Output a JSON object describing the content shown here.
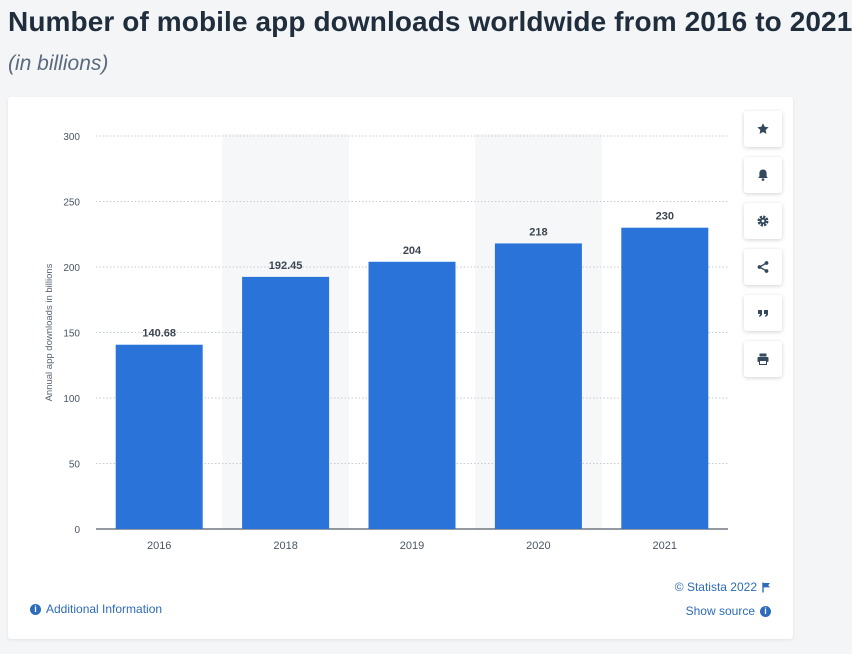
{
  "header": {
    "title": "Number of mobile app downloads worldwide from 2016 to 2021",
    "subtitle": "(in billions)"
  },
  "chart_data": {
    "type": "bar",
    "categories": [
      "2016",
      "2018",
      "2019",
      "2020",
      "2021"
    ],
    "values": [
      140.68,
      192.45,
      204,
      218,
      230
    ],
    "value_labels": [
      "140.68",
      "192.45",
      "204",
      "218",
      "230"
    ],
    "ylabel": "Annual app downloads in billions",
    "xlabel": "",
    "ylim": [
      0,
      300
    ],
    "yticks": [
      "0",
      "50",
      "100",
      "150",
      "200",
      "250",
      "300"
    ],
    "grid": true,
    "bar_color": "#2a74d9",
    "alternating_band_color": "#f6f7f8"
  },
  "tools": [
    {
      "icon": "star-icon"
    },
    {
      "icon": "bell-icon"
    },
    {
      "icon": "gear-icon"
    },
    {
      "icon": "share-icon"
    },
    {
      "icon": "quote-icon"
    },
    {
      "icon": "print-icon"
    }
  ],
  "footer": {
    "copyright": "© Statista 2022",
    "show_source": "Show source",
    "additional_info": "Additional Information",
    "link_color": "#2e6bb8"
  }
}
